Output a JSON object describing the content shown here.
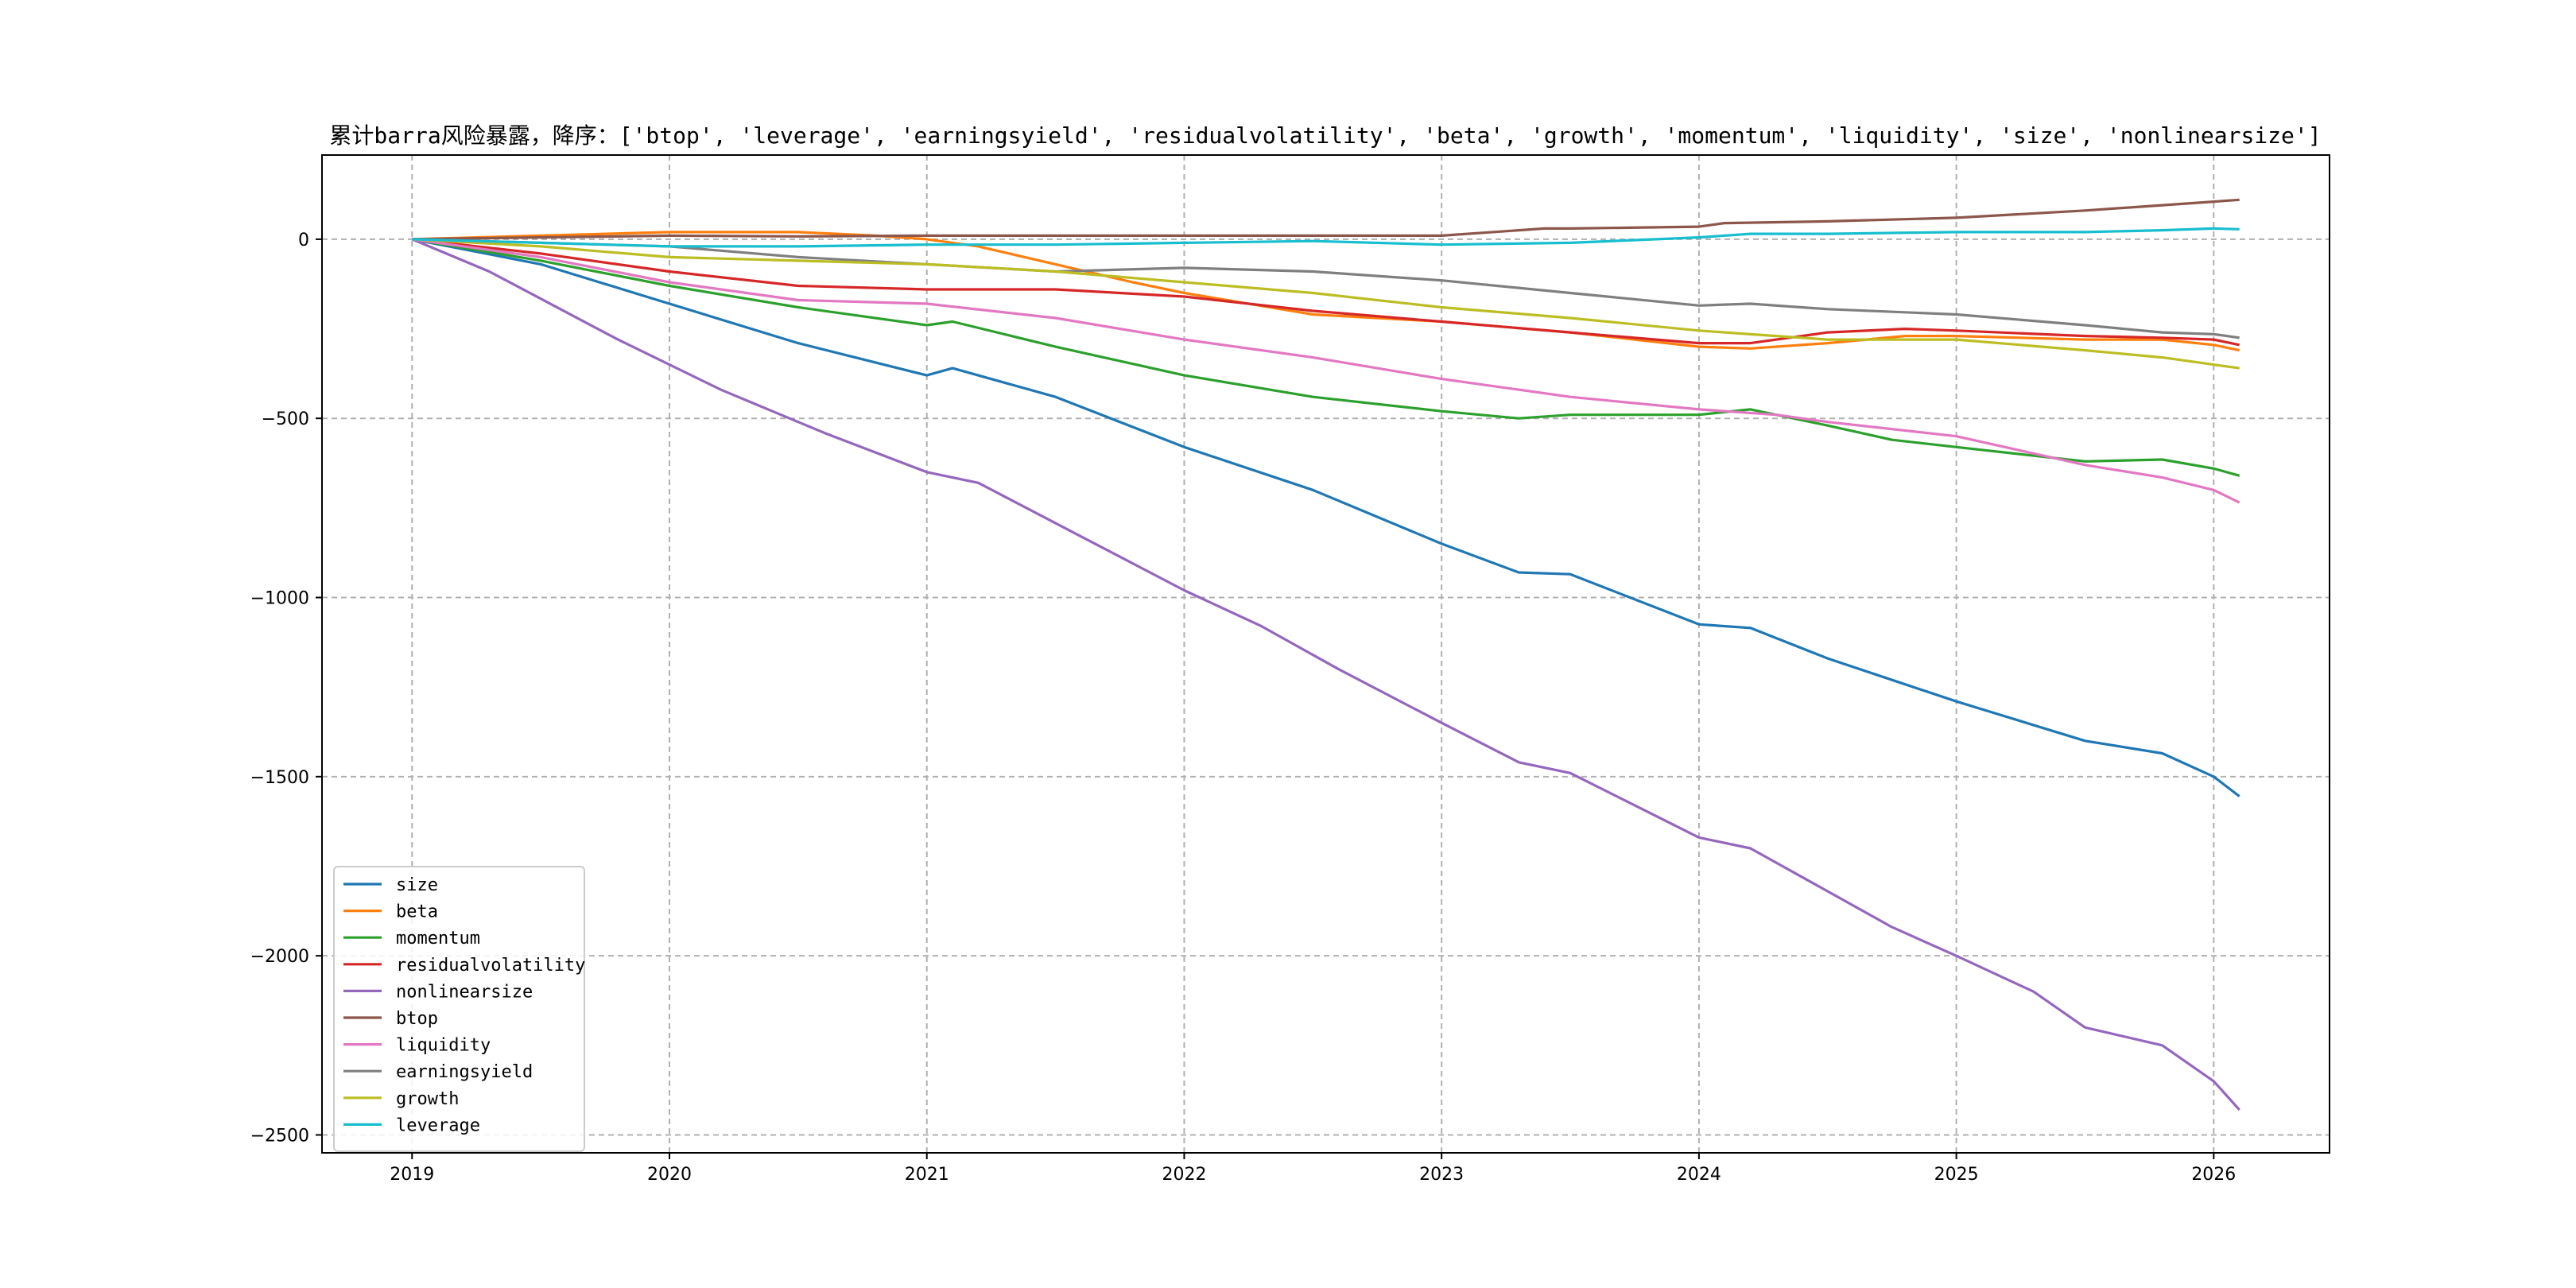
{
  "chart_data": {
    "type": "line",
    "title": "累计barra风险暴露，降序：['btop', 'leverage', 'earningsyield', 'residualvolatility', 'beta', 'growth', 'momentum', 'liquidity', 'size', 'nonlinearsize']",
    "xlabel": "",
    "ylabel": "",
    "xlim": [
      2018.65,
      2026.45
    ],
    "ylim": [
      -2550,
      235
    ],
    "x_ticks": [
      2019,
      2020,
      2021,
      2022,
      2023,
      2024,
      2025,
      2026
    ],
    "x_tick_labels": [
      "2019",
      "2020",
      "2021",
      "2022",
      "2023",
      "2024",
      "2025",
      "2026"
    ],
    "y_ticks": [
      0,
      -500,
      -1000,
      -1500,
      -2000,
      -2500
    ],
    "y_tick_labels": [
      "0",
      "−500",
      "−1000",
      "−1500",
      "−2000",
      "−2500"
    ],
    "grid": true,
    "legend_position": "lower-left",
    "series": [
      {
        "name": "size",
        "color": "#1f77b4",
        "points": [
          [
            2019,
            0
          ],
          [
            2019.5,
            -70
          ],
          [
            2020,
            -180
          ],
          [
            2020.5,
            -290
          ],
          [
            2021,
            -380
          ],
          [
            2021.1,
            -360
          ],
          [
            2021.5,
            -440
          ],
          [
            2022,
            -580
          ],
          [
            2022.5,
            -700
          ],
          [
            2023,
            -850
          ],
          [
            2023.3,
            -930
          ],
          [
            2023.5,
            -935
          ],
          [
            2024,
            -1075
          ],
          [
            2024.2,
            -1085
          ],
          [
            2024.5,
            -1170
          ],
          [
            2024.75,
            -1230
          ],
          [
            2025,
            -1290
          ],
          [
            2025.5,
            -1400
          ],
          [
            2025.8,
            -1435
          ],
          [
            2026,
            -1500
          ],
          [
            2026.1,
            -1555
          ]
        ]
      },
      {
        "name": "beta",
        "color": "#ff7f0e",
        "points": [
          [
            2019,
            0
          ],
          [
            2019.5,
            10
          ],
          [
            2020,
            20
          ],
          [
            2020.5,
            20
          ],
          [
            2020.8,
            10
          ],
          [
            2021,
            0
          ],
          [
            2021.2,
            -20
          ],
          [
            2021.5,
            -70
          ],
          [
            2021.8,
            -120
          ],
          [
            2022,
            -150
          ],
          [
            2022.5,
            -210
          ],
          [
            2023,
            -230
          ],
          [
            2023.5,
            -260
          ],
          [
            2024,
            -300
          ],
          [
            2024.2,
            -305
          ],
          [
            2024.5,
            -290
          ],
          [
            2024.8,
            -270
          ],
          [
            2025,
            -270
          ],
          [
            2025.5,
            -280
          ],
          [
            2025.8,
            -280
          ],
          [
            2026,
            -295
          ],
          [
            2026.1,
            -310
          ]
        ]
      },
      {
        "name": "momentum",
        "color": "#2ca02c",
        "points": [
          [
            2019,
            0
          ],
          [
            2019.5,
            -60
          ],
          [
            2020,
            -130
          ],
          [
            2020.5,
            -190
          ],
          [
            2021,
            -240
          ],
          [
            2021.1,
            -230
          ],
          [
            2021.5,
            -300
          ],
          [
            2022,
            -380
          ],
          [
            2022.5,
            -440
          ],
          [
            2023,
            -480
          ],
          [
            2023.3,
            -500
          ],
          [
            2023.5,
            -490
          ],
          [
            2024,
            -490
          ],
          [
            2024.2,
            -475
          ],
          [
            2024.5,
            -520
          ],
          [
            2024.75,
            -560
          ],
          [
            2025,
            -580
          ],
          [
            2025.5,
            -620
          ],
          [
            2025.8,
            -615
          ],
          [
            2026,
            -640
          ],
          [
            2026.1,
            -660
          ]
        ]
      },
      {
        "name": "residualvolatility",
        "color": "#d62728",
        "points": [
          [
            2019,
            0
          ],
          [
            2019.5,
            -40
          ],
          [
            2020,
            -90
          ],
          [
            2020.5,
            -130
          ],
          [
            2021,
            -140
          ],
          [
            2021.5,
            -140
          ],
          [
            2022,
            -160
          ],
          [
            2022.5,
            -200
          ],
          [
            2023,
            -230
          ],
          [
            2023.5,
            -260
          ],
          [
            2024,
            -290
          ],
          [
            2024.2,
            -290
          ],
          [
            2024.5,
            -260
          ],
          [
            2024.8,
            -250
          ],
          [
            2025,
            -255
          ],
          [
            2025.5,
            -270
          ],
          [
            2025.8,
            -275
          ],
          [
            2026,
            -280
          ],
          [
            2026.1,
            -295
          ]
        ]
      },
      {
        "name": "nonlinearsize",
        "color": "#9467bd",
        "points": [
          [
            2019,
            0
          ],
          [
            2019.3,
            -90
          ],
          [
            2019.8,
            -280
          ],
          [
            2020.2,
            -420
          ],
          [
            2020.6,
            -540
          ],
          [
            2021,
            -650
          ],
          [
            2021.2,
            -680
          ],
          [
            2021.6,
            -830
          ],
          [
            2022,
            -980
          ],
          [
            2022.3,
            -1080
          ],
          [
            2022.6,
            -1200
          ],
          [
            2023,
            -1350
          ],
          [
            2023.3,
            -1460
          ],
          [
            2023.5,
            -1490
          ],
          [
            2024,
            -1670
          ],
          [
            2024.2,
            -1700
          ],
          [
            2024.5,
            -1820
          ],
          [
            2024.75,
            -1920
          ],
          [
            2025,
            -2000
          ],
          [
            2025.3,
            -2100
          ],
          [
            2025.5,
            -2200
          ],
          [
            2025.8,
            -2250
          ],
          [
            2026,
            -2350
          ],
          [
            2026.1,
            -2430
          ]
        ]
      },
      {
        "name": "btop",
        "color": "#8c564b",
        "points": [
          [
            2019,
            0
          ],
          [
            2019.5,
            5
          ],
          [
            2020,
            10
          ],
          [
            2020.5,
            8
          ],
          [
            2021,
            10
          ],
          [
            2021.5,
            10
          ],
          [
            2022,
            10
          ],
          [
            2022.5,
            10
          ],
          [
            2023,
            10
          ],
          [
            2023.4,
            30
          ],
          [
            2023.5,
            30
          ],
          [
            2024,
            35
          ],
          [
            2024.1,
            45
          ],
          [
            2024.5,
            50
          ],
          [
            2025,
            60
          ],
          [
            2025.5,
            80
          ],
          [
            2025.8,
            95
          ],
          [
            2026,
            105
          ],
          [
            2026.1,
            110
          ]
        ]
      },
      {
        "name": "liquidity",
        "color": "#e377c2",
        "points": [
          [
            2019,
            0
          ],
          [
            2019.5,
            -50
          ],
          [
            2020,
            -120
          ],
          [
            2020.5,
            -170
          ],
          [
            2021,
            -180
          ],
          [
            2021.5,
            -220
          ],
          [
            2022,
            -280
          ],
          [
            2022.5,
            -330
          ],
          [
            2023,
            -390
          ],
          [
            2023.5,
            -440
          ],
          [
            2024,
            -475
          ],
          [
            2024.3,
            -490
          ],
          [
            2024.5,
            -510
          ],
          [
            2025,
            -550
          ],
          [
            2025.5,
            -630
          ],
          [
            2025.8,
            -665
          ],
          [
            2026,
            -700
          ],
          [
            2026.1,
            -735
          ]
        ]
      },
      {
        "name": "earningsyield",
        "color": "#7f7f7f",
        "points": [
          [
            2019,
            0
          ],
          [
            2019.5,
            -10
          ],
          [
            2020,
            -20
          ],
          [
            2020.5,
            -50
          ],
          [
            2021,
            -70
          ],
          [
            2021.5,
            -90
          ],
          [
            2022,
            -80
          ],
          [
            2022.5,
            -90
          ],
          [
            2023,
            -115
          ],
          [
            2023.5,
            -150
          ],
          [
            2024,
            -185
          ],
          [
            2024.2,
            -180
          ],
          [
            2024.5,
            -195
          ],
          [
            2025,
            -210
          ],
          [
            2025.5,
            -240
          ],
          [
            2025.8,
            -260
          ],
          [
            2026,
            -265
          ],
          [
            2026.1,
            -275
          ]
        ]
      },
      {
        "name": "growth",
        "color": "#bcbd22",
        "points": [
          [
            2019,
            0
          ],
          [
            2019.5,
            -20
          ],
          [
            2020,
            -50
          ],
          [
            2020.5,
            -60
          ],
          [
            2021,
            -70
          ],
          [
            2021.5,
            -90
          ],
          [
            2022,
            -120
          ],
          [
            2022.5,
            -150
          ],
          [
            2023,
            -190
          ],
          [
            2023.5,
            -220
          ],
          [
            2024,
            -255
          ],
          [
            2024.3,
            -270
          ],
          [
            2024.5,
            -280
          ],
          [
            2025,
            -280
          ],
          [
            2025.5,
            -310
          ],
          [
            2025.8,
            -330
          ],
          [
            2026,
            -350
          ],
          [
            2026.1,
            -360
          ]
        ]
      },
      {
        "name": "leverage",
        "color": "#17becf",
        "points": [
          [
            2019,
            0
          ],
          [
            2019.5,
            -10
          ],
          [
            2020,
            -20
          ],
          [
            2020.5,
            -20
          ],
          [
            2021,
            -15
          ],
          [
            2021.5,
            -15
          ],
          [
            2022,
            -10
          ],
          [
            2022.5,
            -5
          ],
          [
            2023,
            -15
          ],
          [
            2023.5,
            -10
          ],
          [
            2024,
            5
          ],
          [
            2024.2,
            15
          ],
          [
            2024.5,
            15
          ],
          [
            2025,
            20
          ],
          [
            2025.5,
            20
          ],
          [
            2025.8,
            25
          ],
          [
            2026,
            30
          ],
          [
            2026.1,
            28
          ]
        ]
      }
    ]
  }
}
